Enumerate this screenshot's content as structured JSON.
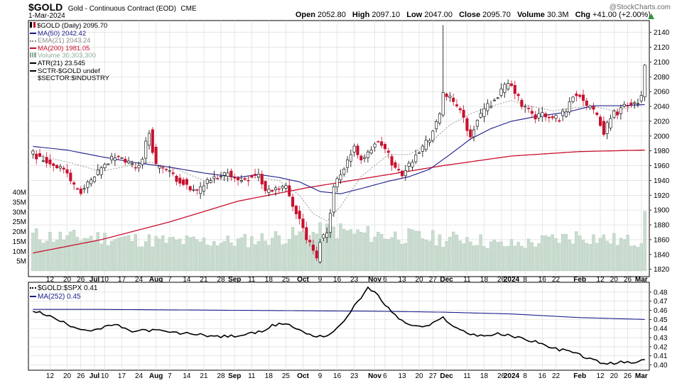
{
  "header": {
    "symbol": "$GOLD",
    "description": "Gold - Continuous Contract (EOD)",
    "exchange": "CME",
    "date": "1-Mar-2024",
    "watermark": "@StockCharts.com",
    "ohlc": [
      {
        "label": "Open",
        "value": "2052.80"
      },
      {
        "label": "High",
        "value": "2097.10"
      },
      {
        "label": "Low",
        "value": "2047.00"
      },
      {
        "label": "Close",
        "value": "2095.70"
      },
      {
        "label": "Volume",
        "value": "30.3M"
      },
      {
        "label": "Chg",
        "value": "+41.00 (+2.00%)"
      }
    ],
    "chg_icon": "up-triangle-icon"
  },
  "legend": {
    "price": [
      {
        "text": "$GOLD (Daily) 2095.70",
        "color": "#000000",
        "icon": "candle-icon"
      },
      {
        "text": "MA(50) 2042.42",
        "color": "#1c1c8c",
        "icon": "line-icon"
      },
      {
        "text": "EMA(21) 2043.24",
        "color": "#8c8c8c",
        "icon": "dotted-line-icon"
      },
      {
        "text": "MA(200) 1981.05",
        "color": "#c8102e",
        "icon": "line-icon"
      },
      {
        "text": "Volume 30,303,300",
        "color": "#8fae9a",
        "icon": "volume-bars-icon"
      },
      {
        "text": "ATR(21) 23.545",
        "color": "#000000",
        "icon": "line-icon"
      },
      {
        "text": "SCTR-$GOLD undef",
        "color": "#000000",
        "icon": "line-icon"
      },
      {
        "text": "$SECTOR:$INDUSTRY",
        "color": "#000000",
        "icon": ""
      }
    ],
    "ratio": [
      {
        "text": "$GOLD:$SPX 0.41",
        "color": "#000000",
        "icon": "dotted-line-icon"
      },
      {
        "text": "MA(252) 0.45",
        "color": "#1c1c8c",
        "icon": "line-icon"
      }
    ]
  },
  "colors": {
    "up": "#ffffff",
    "down": "#c8102e",
    "ma50": "#1c1c8c",
    "ema21": "#9a9a9a",
    "ma200": "#c8102e",
    "volume": "#c9dccf",
    "volume_edge": "#9fbca9",
    "grid": "#d8d8d8",
    "ratio": "#000000",
    "ratio_ma": "#1c1c8c"
  },
  "chart_data": [
    {
      "type": "candlestick",
      "title": "$GOLD (Daily) 2095.70",
      "ylim": [
        1812,
        2155
      ],
      "yticks": [
        1820,
        1840,
        1860,
        1880,
        1900,
        1920,
        1940,
        1960,
        1980,
        2000,
        2020,
        2040,
        2060,
        2080,
        2100,
        2120,
        2140
      ],
      "volume_ylim": [
        0,
        40
      ],
      "volume_ticks": [
        {
          "label": "5M",
          "value": 5
        },
        {
          "label": "10M",
          "value": 10
        },
        {
          "label": "15M",
          "value": 15
        },
        {
          "label": "20M",
          "value": 20
        },
        {
          "label": "25M",
          "value": 25
        },
        {
          "label": "30M",
          "value": 30
        },
        {
          "label": "35M",
          "value": 35
        },
        {
          "label": "40M",
          "value": 40
        }
      ],
      "x_ticks": [
        {
          "label": "12",
          "index": 5,
          "bold": false
        },
        {
          "label": "20",
          "index": 10,
          "bold": false
        },
        {
          "label": "26",
          "index": 14,
          "bold": false
        },
        {
          "label": "Jul",
          "index": 18,
          "bold": true
        },
        {
          "label": "10",
          "index": 21,
          "bold": false
        },
        {
          "label": "17",
          "index": 26,
          "bold": false
        },
        {
          "label": "24",
          "index": 31,
          "bold": false
        },
        {
          "label": "Aug",
          "index": 36,
          "bold": true
        },
        {
          "label": "7",
          "index": 40,
          "bold": false
        },
        {
          "label": "14",
          "index": 45,
          "bold": false
        },
        {
          "label": "21",
          "index": 50,
          "bold": false
        },
        {
          "label": "28",
          "index": 55,
          "bold": false
        },
        {
          "label": "Sep",
          "index": 59,
          "bold": true
        },
        {
          "label": "11",
          "index": 64,
          "bold": false
        },
        {
          "label": "18",
          "index": 69,
          "bold": false
        },
        {
          "label": "25",
          "index": 74,
          "bold": false
        },
        {
          "label": "Oct",
          "index": 79,
          "bold": true
        },
        {
          "label": "9",
          "index": 84,
          "bold": false
        },
        {
          "label": "16",
          "index": 89,
          "bold": false
        },
        {
          "label": "23",
          "index": 94,
          "bold": false
        },
        {
          "label": "Nov",
          "index": 100,
          "bold": true
        },
        {
          "label": "6",
          "index": 103,
          "bold": false
        },
        {
          "label": "13",
          "index": 108,
          "bold": false
        },
        {
          "label": "20",
          "index": 113,
          "bold": false
        },
        {
          "label": "27",
          "index": 117,
          "bold": false
        },
        {
          "label": "Dec",
          "index": 121,
          "bold": true
        },
        {
          "label": "11",
          "index": 127,
          "bold": false
        },
        {
          "label": "18",
          "index": 132,
          "bold": false
        },
        {
          "label": "26",
          "index": 137,
          "bold": false
        },
        {
          "label": "2024",
          "index": 140,
          "bold": true
        },
        {
          "label": "8",
          "index": 144,
          "bold": false
        },
        {
          "label": "16",
          "index": 149,
          "bold": false
        },
        {
          "label": "22",
          "index": 153,
          "bold": false
        },
        {
          "label": "Feb",
          "index": 160,
          "bold": true
        },
        {
          "label": "12",
          "index": 166,
          "bold": false
        },
        {
          "label": "20",
          "index": 170,
          "bold": false
        },
        {
          "label": "26",
          "index": 174,
          "bold": false
        },
        {
          "label": "Mar",
          "index": 178,
          "bold": true
        }
      ],
      "price_anchors": [
        [
          0,
          1975
        ],
        [
          3,
          1968
        ],
        [
          6,
          1962
        ],
        [
          9,
          1955
        ],
        [
          12,
          1933
        ],
        [
          14,
          1925
        ],
        [
          17,
          1938
        ],
        [
          20,
          1955
        ],
        [
          23,
          1970
        ],
        [
          25,
          1974
        ],
        [
          28,
          1962
        ],
        [
          31,
          1958
        ],
        [
          34,
          2005
        ],
        [
          36,
          1960
        ],
        [
          38,
          1958
        ],
        [
          41,
          1945
        ],
        [
          44,
          1938
        ],
        [
          46,
          1924
        ],
        [
          48,
          1926
        ],
        [
          50,
          1933
        ],
        [
          52,
          1940
        ],
        [
          55,
          1943
        ],
        [
          57,
          1953
        ],
        [
          59,
          1942
        ],
        [
          61,
          1940
        ],
        [
          63,
          1945
        ],
        [
          66,
          1948
        ],
        [
          68,
          1925
        ],
        [
          70,
          1928
        ],
        [
          72,
          1932
        ],
        [
          74,
          1930
        ],
        [
          76,
          1908
        ],
        [
          78,
          1888
        ],
        [
          80,
          1862
        ],
        [
          82,
          1845
        ],
        [
          83,
          1832
        ],
        [
          84,
          1860
        ],
        [
          86,
          1870
        ],
        [
          88,
          1930
        ],
        [
          90,
          1950
        ],
        [
          92,
          1968
        ],
        [
          94,
          1983
        ],
        [
          96,
          1970
        ],
        [
          98,
          1975
        ],
        [
          100,
          1990
        ],
        [
          102,
          1988
        ],
        [
          104,
          1974
        ],
        [
          106,
          1955
        ],
        [
          108,
          1950
        ],
        [
          110,
          1960
        ],
        [
          112,
          1978
        ],
        [
          114,
          1985
        ],
        [
          116,
          1998
        ],
        [
          118,
          2015
        ],
        [
          119,
          2030
        ],
        [
          120,
          2060
        ],
        [
          121,
          2055
        ],
        [
          123,
          2043
        ],
        [
          125,
          2038
        ],
        [
          127,
          2010
        ],
        [
          128,
          1995
        ],
        [
          130,
          2025
        ],
        [
          133,
          2040
        ],
        [
          135,
          2050
        ],
        [
          137,
          2060
        ],
        [
          139,
          2070
        ],
        [
          141,
          2060
        ],
        [
          143,
          2040
        ],
        [
          145,
          2035
        ],
        [
          147,
          2025
        ],
        [
          149,
          2030
        ],
        [
          151,
          2023
        ],
        [
          154,
          2025
        ],
        [
          156,
          2035
        ],
        [
          158,
          2055
        ],
        [
          160,
          2058
        ],
        [
          162,
          2040
        ],
        [
          164,
          2032
        ],
        [
          166,
          2018
        ],
        [
          167,
          2002
        ],
        [
          169,
          2028
        ],
        [
          171,
          2033
        ],
        [
          173,
          2042
        ],
        [
          176,
          2046
        ],
        [
          178,
          2052
        ],
        [
          179,
          2095.7
        ]
      ],
      "volume_anchors": [
        [
          0,
          18
        ],
        [
          10,
          17
        ],
        [
          20,
          17
        ],
        [
          30,
          16
        ],
        [
          40,
          15
        ],
        [
          50,
          15
        ],
        [
          60,
          15
        ],
        [
          70,
          17
        ],
        [
          76,
          18
        ],
        [
          82,
          19
        ],
        [
          88,
          21
        ],
        [
          95,
          19
        ],
        [
          105,
          18
        ],
        [
          115,
          17
        ],
        [
          121,
          16
        ],
        [
          127,
          17
        ],
        [
          137,
          13
        ],
        [
          145,
          14
        ],
        [
          152,
          16
        ],
        [
          160,
          18
        ],
        [
          168,
          16
        ],
        [
          175,
          15
        ],
        [
          178,
          16
        ],
        [
          179,
          30.3
        ]
      ],
      "ma50_anchors": [
        [
          0,
          1986
        ],
        [
          10,
          1981
        ],
        [
          20,
          1972
        ],
        [
          30,
          1964
        ],
        [
          40,
          1958
        ],
        [
          50,
          1950
        ],
        [
          60,
          1944
        ],
        [
          66,
          1948
        ],
        [
          72,
          1944
        ],
        [
          78,
          1938
        ],
        [
          84,
          1925
        ],
        [
          90,
          1922
        ],
        [
          96,
          1929
        ],
        [
          104,
          1939
        ],
        [
          110,
          1945
        ],
        [
          116,
          1955
        ],
        [
          122,
          1975
        ],
        [
          128,
          1996
        ],
        [
          134,
          2010
        ],
        [
          140,
          2020
        ],
        [
          148,
          2027
        ],
        [
          156,
          2032
        ],
        [
          164,
          2041
        ],
        [
          172,
          2041
        ],
        [
          179,
          2042.42
        ]
      ],
      "ema21_anchors": [
        [
          0,
          1975
        ],
        [
          10,
          1965
        ],
        [
          20,
          1952
        ],
        [
          28,
          1960
        ],
        [
          34,
          1965
        ],
        [
          42,
          1955
        ],
        [
          50,
          1940
        ],
        [
          58,
          1942
        ],
        [
          66,
          1944
        ],
        [
          72,
          1940
        ],
        [
          78,
          1920
        ],
        [
          82,
          1895
        ],
        [
          86,
          1885
        ],
        [
          90,
          1905
        ],
        [
          96,
          1945
        ],
        [
          104,
          1975
        ],
        [
          110,
          1975
        ],
        [
          116,
          1990
        ],
        [
          122,
          2015
        ],
        [
          128,
          2030
        ],
        [
          134,
          2040
        ],
        [
          140,
          2048
        ],
        [
          146,
          2040
        ],
        [
          152,
          2034
        ],
        [
          158,
          2038
        ],
        [
          164,
          2040
        ],
        [
          170,
          2034
        ],
        [
          176,
          2040
        ],
        [
          179,
          2043.24
        ]
      ],
      "ma200_anchors": [
        [
          0,
          1842
        ],
        [
          20,
          1860
        ],
        [
          40,
          1884
        ],
        [
          60,
          1912
        ],
        [
          80,
          1930
        ],
        [
          100,
          1945
        ],
        [
          120,
          1960
        ],
        [
          140,
          1973
        ],
        [
          160,
          1979
        ],
        [
          179,
          1981.05
        ]
      ]
    },
    {
      "type": "line",
      "title": "$GOLD:$SPX 0.41",
      "ylim": [
        0.395,
        0.49
      ],
      "yticks": [
        0.4,
        0.41,
        0.42,
        0.43,
        0.44,
        0.45,
        0.46,
        0.47,
        0.48
      ],
      "series": [
        {
          "name": "$GOLD:$SPX",
          "color": "#000000",
          "anchors": [
            [
              0,
              0.46
            ],
            [
              4,
              0.455
            ],
            [
              8,
              0.448
            ],
            [
              12,
              0.442
            ],
            [
              16,
              0.438
            ],
            [
              20,
              0.44
            ],
            [
              24,
              0.445
            ],
            [
              28,
              0.437
            ],
            [
              32,
              0.438
            ],
            [
              36,
              0.438
            ],
            [
              42,
              0.435
            ],
            [
              48,
              0.434
            ],
            [
              54,
              0.431
            ],
            [
              60,
              0.432
            ],
            [
              66,
              0.436
            ],
            [
              70,
              0.443
            ],
            [
              74,
              0.446
            ],
            [
              78,
              0.438
            ],
            [
              82,
              0.432
            ],
            [
              86,
              0.432
            ],
            [
              90,
              0.443
            ],
            [
              94,
              0.465
            ],
            [
              98,
              0.484
            ],
            [
              100,
              0.48
            ],
            [
              104,
              0.462
            ],
            [
              108,
              0.448
            ],
            [
              112,
              0.442
            ],
            [
              116,
              0.443
            ],
            [
              120,
              0.452
            ],
            [
              124,
              0.44
            ],
            [
              128,
              0.434
            ],
            [
              132,
              0.432
            ],
            [
              136,
              0.434
            ],
            [
              140,
              0.432
            ],
            [
              144,
              0.428
            ],
            [
              148,
              0.425
            ],
            [
              152,
              0.418
            ],
            [
              156,
              0.416
            ],
            [
              160,
              0.411
            ],
            [
              164,
              0.405
            ],
            [
              168,
              0.401
            ],
            [
              172,
              0.403
            ],
            [
              176,
              0.402
            ],
            [
              179,
              0.406
            ]
          ]
        },
        {
          "name": "MA(252)",
          "color": "#1c1c8c",
          "anchors": [
            [
              0,
              0.461
            ],
            [
              20,
              0.461
            ],
            [
              60,
              0.46
            ],
            [
              100,
              0.459
            ],
            [
              120,
              0.458
            ],
            [
              140,
              0.456
            ],
            [
              160,
              0.452
            ],
            [
              179,
              0.45
            ]
          ]
        }
      ]
    }
  ]
}
